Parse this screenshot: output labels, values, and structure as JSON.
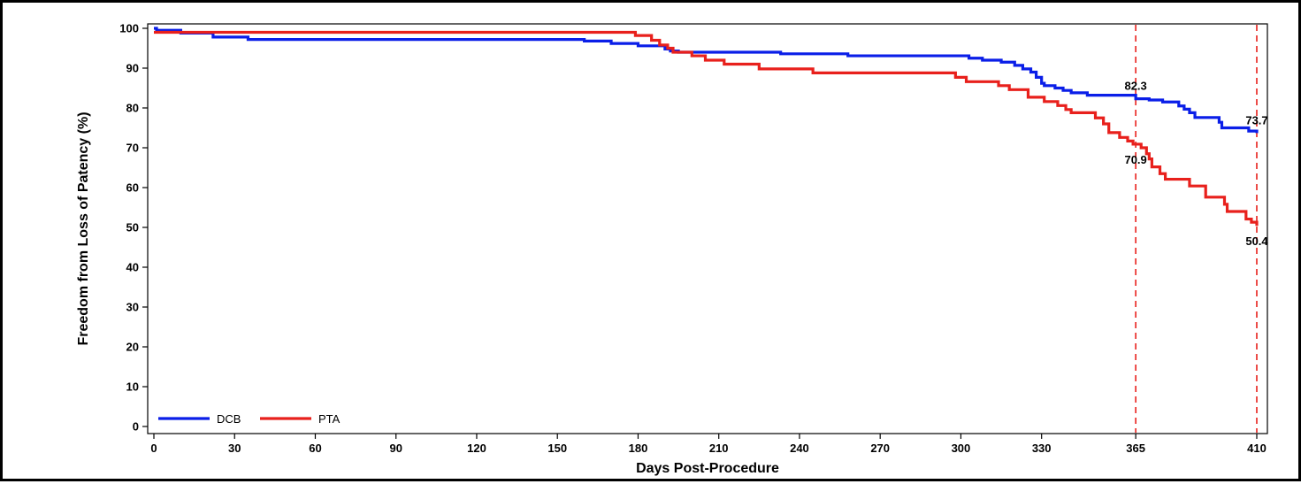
{
  "chart_data": {
    "type": "line",
    "title": "",
    "xlabel": "Days Post-Procedure",
    "ylabel": "Freedom from Loss of Patency (%)",
    "xlim": [
      0,
      410
    ],
    "ylim": [
      0,
      100
    ],
    "x_ticks": [
      0,
      30,
      60,
      90,
      120,
      150,
      180,
      210,
      240,
      270,
      300,
      330,
      365,
      410
    ],
    "y_ticks": [
      0,
      10,
      20,
      30,
      40,
      50,
      60,
      70,
      80,
      90,
      100
    ],
    "step": true,
    "grid": false,
    "legend_position": "bottom-left",
    "reference_lines": [
      {
        "x": 365,
        "color": "#e8201c",
        "style": "dashed"
      },
      {
        "x": 410,
        "color": "#e8201c",
        "style": "dashed"
      }
    ],
    "series": [
      {
        "name": "DCB",
        "color": "#0a1ee8",
        "points": [
          [
            0,
            100
          ],
          [
            1,
            99.5
          ],
          [
            10,
            98.8
          ],
          [
            22,
            97.8
          ],
          [
            35,
            97.2
          ],
          [
            160,
            96.8
          ],
          [
            170,
            96.2
          ],
          [
            180,
            95.6
          ],
          [
            190,
            94.8
          ],
          [
            192,
            94.3
          ],
          [
            195,
            94.0
          ],
          [
            233,
            93.6
          ],
          [
            258,
            93.1
          ],
          [
            303,
            92.5
          ],
          [
            308,
            92.0
          ],
          [
            315,
            91.5
          ],
          [
            320,
            90.7
          ],
          [
            323,
            89.8
          ],
          [
            326,
            89.0
          ],
          [
            328,
            87.7
          ],
          [
            330,
            86.2
          ],
          [
            331,
            85.6
          ],
          [
            335,
            85.0
          ],
          [
            338,
            84.4
          ],
          [
            341,
            83.8
          ],
          [
            347,
            83.2
          ],
          [
            365,
            82.3
          ],
          [
            370,
            82.0
          ],
          [
            375,
            81.5
          ],
          [
            381,
            80.5
          ],
          [
            383,
            79.7
          ],
          [
            385,
            78.8
          ],
          [
            387,
            77.6
          ],
          [
            396,
            76.4
          ],
          [
            397,
            75.0
          ],
          [
            407,
            74.2
          ],
          [
            410,
            73.7
          ]
        ]
      },
      {
        "name": "PTA",
        "color": "#e8201c",
        "points": [
          [
            0,
            99
          ],
          [
            179,
            98.2
          ],
          [
            185,
            97.0
          ],
          [
            188,
            95.8
          ],
          [
            191,
            95.0
          ],
          [
            193,
            94.0
          ],
          [
            200,
            93.1
          ],
          [
            205,
            92.0
          ],
          [
            212,
            91.0
          ],
          [
            225,
            89.8
          ],
          [
            245,
            88.8
          ],
          [
            298,
            87.7
          ],
          [
            302,
            86.6
          ],
          [
            314,
            85.6
          ],
          [
            318,
            84.6
          ],
          [
            325,
            82.7
          ],
          [
            331,
            81.6
          ],
          [
            336,
            80.6
          ],
          [
            339,
            79.6
          ],
          [
            341,
            78.8
          ],
          [
            350,
            77.5
          ],
          [
            353,
            76.0
          ],
          [
            355,
            73.8
          ],
          [
            359,
            72.6
          ],
          [
            362,
            71.7
          ],
          [
            364,
            70.9
          ],
          [
            367,
            70.0
          ],
          [
            369,
            68.5
          ],
          [
            370,
            67.2
          ],
          [
            371,
            65.2
          ],
          [
            374,
            63.5
          ],
          [
            376,
            62.1
          ],
          [
            385,
            60.4
          ],
          [
            391,
            57.6
          ],
          [
            398,
            55.8
          ],
          [
            399,
            54.0
          ],
          [
            406,
            52.1
          ],
          [
            408,
            51.3
          ],
          [
            410,
            50.4
          ]
        ]
      }
    ],
    "annotations": [
      {
        "text": "82.3",
        "x": 365,
        "y": 82.3,
        "placement": "above"
      },
      {
        "text": "70.9",
        "x": 365,
        "y": 70.9,
        "placement": "below"
      },
      {
        "text": "73.7",
        "x": 410,
        "y": 73.7,
        "placement": "above"
      },
      {
        "text": "50.4",
        "x": 410,
        "y": 50.4,
        "placement": "below"
      }
    ]
  }
}
